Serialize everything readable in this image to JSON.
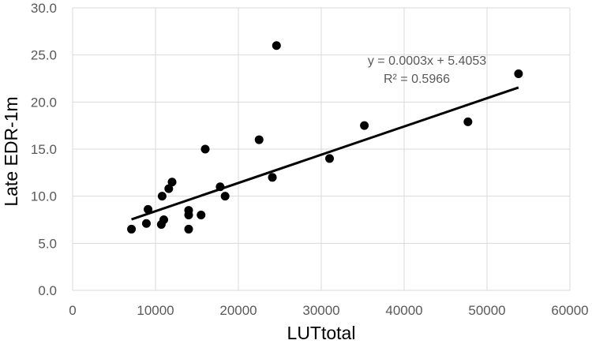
{
  "chart_data": {
    "type": "scatter",
    "title": "",
    "xlabel": "LUTtotal",
    "ylabel": "Late EDR-1m",
    "xlim": [
      0,
      60000
    ],
    "ylim": [
      0,
      30
    ],
    "x_ticks": [
      0,
      10000,
      20000,
      30000,
      40000,
      50000,
      60000
    ],
    "x_tick_labels": [
      "0",
      "10000",
      "20000",
      "30000",
      "40000",
      "50000",
      "60000"
    ],
    "y_ticks": [
      0,
      5,
      10,
      15,
      20,
      25,
      30
    ],
    "y_tick_labels": [
      "0.0",
      "5.0",
      "10.0",
      "15.0",
      "20.0",
      "25.0",
      "30.0"
    ],
    "grid": true,
    "legend": "none",
    "colors": {
      "points": "#000000",
      "trendline": "#000000",
      "grid": "#d9d9d9",
      "tick_text": "#595959"
    },
    "series": [
      {
        "points": [
          [
            7100,
            6.5
          ],
          [
            8900,
            7.1
          ],
          [
            9100,
            8.6
          ],
          [
            10700,
            7.0
          ],
          [
            10800,
            10.0
          ],
          [
            11000,
            7.5
          ],
          [
            11600,
            10.8
          ],
          [
            12000,
            11.5
          ],
          [
            14000,
            8.5
          ],
          [
            14000,
            8.0
          ],
          [
            14000,
            6.5
          ],
          [
            15500,
            8.0
          ],
          [
            16000,
            15.0
          ],
          [
            17800,
            11.0
          ],
          [
            18400,
            10.0
          ],
          [
            22500,
            16.0
          ],
          [
            24100,
            12.0
          ],
          [
            24600,
            26.0
          ],
          [
            31000,
            14.0
          ],
          [
            35200,
            17.5
          ],
          [
            47700,
            17.9
          ],
          [
            53800,
            23.0
          ]
        ]
      }
    ],
    "trendline": {
      "type": "linear",
      "slope": 0.0003,
      "intercept": 5.4053,
      "x_range": [
        7100,
        53800
      ],
      "equation_label": "y = 0.0003x + 5.4053",
      "r2_label": "R² = 0.5966"
    }
  }
}
